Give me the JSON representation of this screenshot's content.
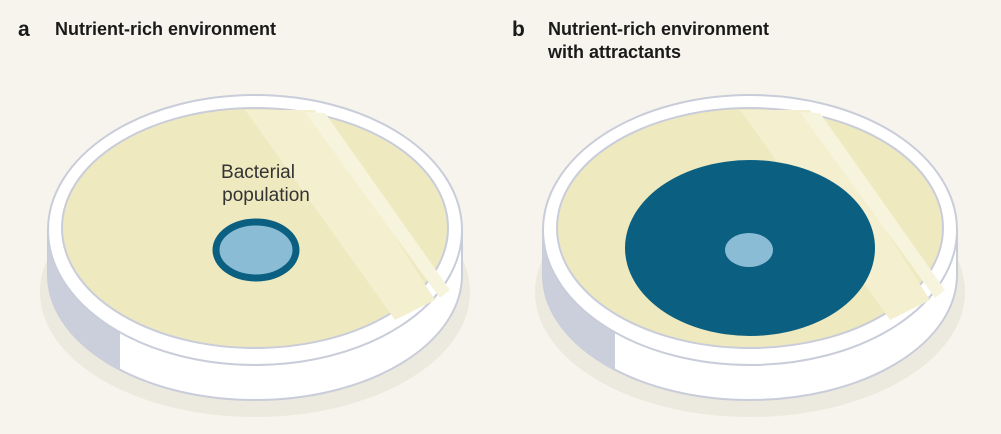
{
  "panels": [
    {
      "letter": "a",
      "title_lines": [
        "Nutrient-rich environment"
      ],
      "annotation_lines": [
        "Bacterial",
        "population"
      ]
    },
    {
      "letter": "b",
      "title_lines": [
        "Nutrient-rich environment",
        "with attractants"
      ]
    }
  ]
}
